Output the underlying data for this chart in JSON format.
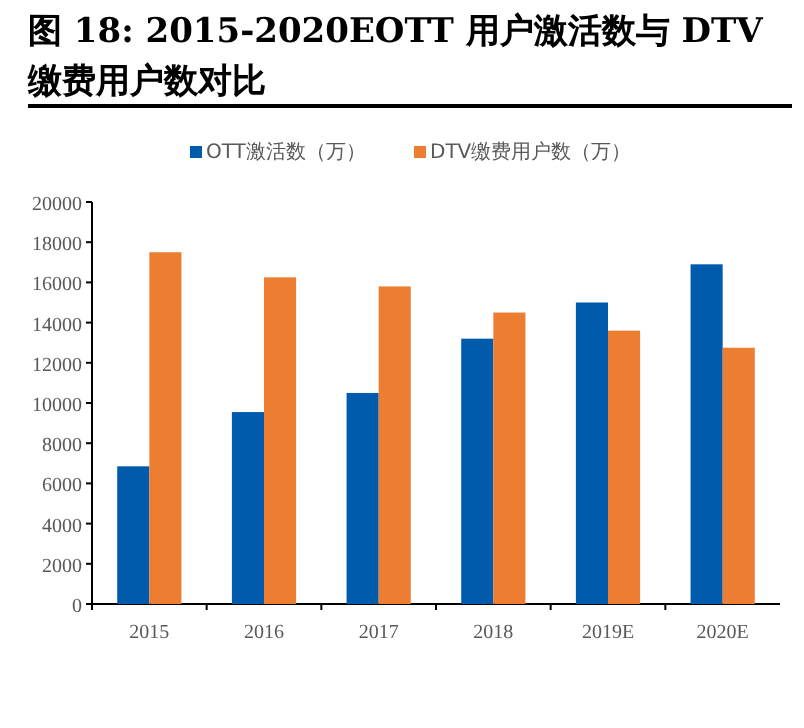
{
  "chart_data": {
    "type": "bar",
    "title": "图 18: 2015-2020EOTT 用户激活数与 DTV 缴费用户数对比",
    "categories": [
      "2015",
      "2016",
      "2017",
      "2018",
      "2019E",
      "2020E"
    ],
    "series": [
      {
        "name": "OTT激活数（万）",
        "color": "#005bac",
        "values": [
          6850,
          9550,
          10500,
          13200,
          15000,
          16900
        ]
      },
      {
        "name": "DTV缴费用户数（万）",
        "color": "#ed7d31",
        "values": [
          17500,
          16250,
          15800,
          14500,
          13600,
          12750
        ]
      }
    ],
    "ylim": [
      0,
      20000
    ],
    "yticks": [
      0,
      2000,
      4000,
      6000,
      8000,
      10000,
      12000,
      14000,
      16000,
      18000,
      20000
    ],
    "legend": "top",
    "grid": false
  }
}
